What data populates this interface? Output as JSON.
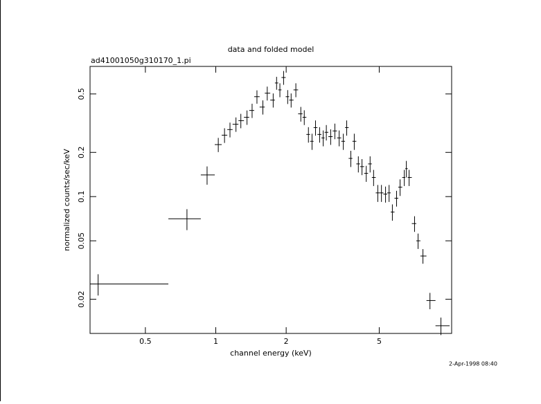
{
  "chart_data": {
    "type": "errorbar",
    "title": "data and folded model",
    "subtitle": "ad41001050g310170_1.pi",
    "x_label": "channel energy (keV)",
    "y_label": "normalized counts/sec/keV",
    "timestamp": "2-Apr-1998 08:40",
    "color": "#000000",
    "xscale": "log",
    "yscale": "log",
    "xlim": [
      0.29,
      10.2
    ],
    "ylim": [
      0.0117,
      0.77
    ],
    "xticks": [
      0.5,
      1,
      2,
      5
    ],
    "yticks": [
      0.02,
      0.05,
      0.1,
      0.2,
      0.5
    ],
    "x": [
      0.314,
      0.753,
      0.918,
      1.025,
      1.09,
      1.15,
      1.22,
      1.28,
      1.36,
      1.43,
      1.5,
      1.59,
      1.66,
      1.76,
      1.82,
      1.88,
      1.95,
      2.03,
      2.1,
      2.2,
      2.31,
      2.39,
      2.49,
      2.58,
      2.67,
      2.78,
      2.88,
      2.97,
      3.1,
      3.23,
      3.37,
      3.51,
      3.63,
      3.78,
      3.91,
      4.07,
      4.22,
      4.4,
      4.57,
      4.73,
      4.93,
      5.11,
      5.32,
      5.51,
      5.69,
      5.93,
      6.14,
      6.4,
      6.53,
      6.71,
      7.08,
      7.33,
      7.69,
      8.24,
      9.18
    ],
    "bins": [
      0.29,
      0.627,
      0.863,
      0.99,
      1.06,
      1.12,
      1.18,
      1.25,
      1.32,
      1.39,
      1.46,
      1.54,
      1.62,
      1.71,
      1.79,
      1.85,
      1.91,
      1.99,
      2.06,
      2.15,
      2.25,
      2.35,
      2.44,
      2.53,
      2.62,
      2.72,
      2.83,
      2.92,
      3.03,
      3.16,
      3.3,
      3.44,
      3.57,
      3.7,
      3.84,
      3.99,
      4.14,
      4.31,
      4.48,
      4.65,
      4.83,
      5.02,
      5.21,
      5.41,
      5.6,
      5.81,
      6.03,
      6.27,
      6.46,
      6.62,
      6.89,
      7.2,
      7.5,
      7.96,
      8.7,
      10.0
    ],
    "values": [
      0.0254,
      0.0706,
      0.1405,
      0.226,
      0.262,
      0.286,
      0.311,
      0.329,
      0.347,
      0.386,
      0.479,
      0.407,
      0.506,
      0.454,
      0.594,
      0.533,
      0.647,
      0.479,
      0.454,
      0.533,
      0.366,
      0.347,
      0.265,
      0.238,
      0.295,
      0.265,
      0.251,
      0.274,
      0.256,
      0.28,
      0.251,
      0.238,
      0.295,
      0.182,
      0.238,
      0.167,
      0.16,
      0.144,
      0.167,
      0.135,
      0.106,
      0.106,
      0.104,
      0.106,
      0.0785,
      0.0975,
      0.116,
      0.135,
      0.155,
      0.135,
      0.0655,
      0.05,
      0.0394,
      0.0196,
      0.0132
    ],
    "yerr": [
      0.0042,
      0.0115,
      0.02,
      0.025,
      0.03,
      0.033,
      0.035,
      0.037,
      0.039,
      0.043,
      0.05,
      0.045,
      0.055,
      0.05,
      0.06,
      0.058,
      0.07,
      0.052,
      0.05,
      0.058,
      0.042,
      0.04,
      0.032,
      0.03,
      0.035,
      0.032,
      0.031,
      0.033,
      0.031,
      0.034,
      0.031,
      0.03,
      0.035,
      0.023,
      0.03,
      0.021,
      0.02,
      0.018,
      0.021,
      0.017,
      0.014,
      0.014,
      0.013,
      0.014,
      0.01,
      0.012,
      0.015,
      0.017,
      0.02,
      0.017,
      0.008,
      0.006,
      0.0045,
      0.0025,
      0.0018
    ]
  }
}
